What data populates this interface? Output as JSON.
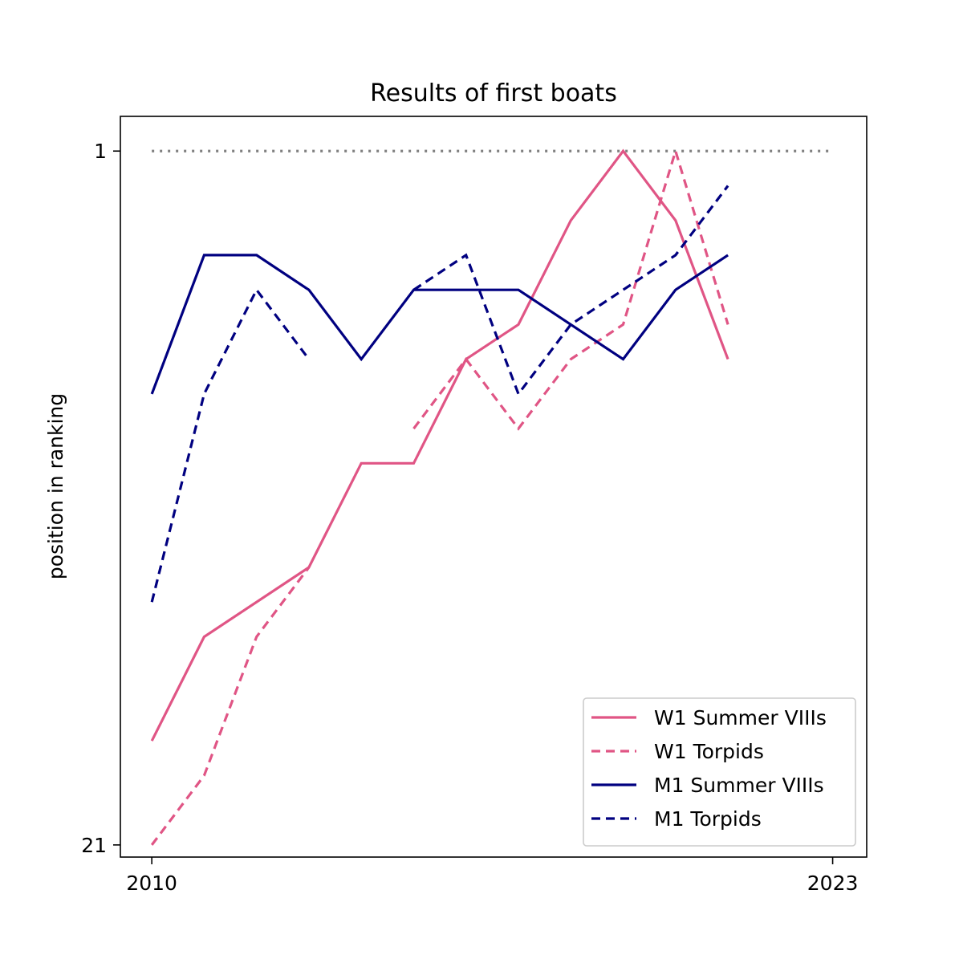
{
  "chart_data": {
    "type": "line",
    "title": "Results of first boats",
    "xlabel": "",
    "ylabel": "position in ranking",
    "x_ticks": [
      "2010",
      "2023"
    ],
    "y_ticks": [
      "1",
      "21"
    ],
    "xlim": [
      2009.4,
      2023.65
    ],
    "ylim": [
      21.35,
      0.0
    ],
    "grid": false,
    "legend_position": "lower-right",
    "x": [
      2010,
      2011,
      2012,
      2013,
      2014,
      2015,
      2016,
      2017,
      2018,
      2019,
      2020,
      2021,
      2022,
      2023
    ],
    "reference_line": {
      "y": 1,
      "x_from": 2010,
      "x_to": 2023,
      "color": "#808080",
      "style": "dotted"
    },
    "series": [
      {
        "name": "W1 Summer VIIIs",
        "color": "#e05585",
        "style": "solid",
        "points": [
          [
            2010,
            18
          ],
          [
            2011,
            15
          ],
          [
            2013,
            13
          ],
          [
            2014,
            10
          ],
          [
            2015,
            10
          ],
          [
            2016,
            7
          ],
          [
            2017,
            6
          ],
          [
            2018,
            3
          ],
          [
            2019,
            1
          ],
          [
            2020,
            3
          ],
          [
            2021,
            7
          ]
        ]
      },
      {
        "name": "W1 Torpids",
        "color": "#e05585",
        "style": "dashed",
        "segments": [
          [
            [
              2010,
              21
            ],
            [
              2011,
              19
            ],
            [
              2012,
              15
            ],
            [
              2013,
              13
            ]
          ],
          [
            [
              2015,
              9
            ],
            [
              2016,
              7
            ],
            [
              2017,
              9
            ],
            [
              2018,
              7
            ],
            [
              2019,
              6
            ],
            [
              2020,
              1
            ],
            [
              2021,
              6
            ]
          ]
        ]
      },
      {
        "name": "M1 Summer VIIIs",
        "color": "#000080",
        "style": "solid",
        "points": [
          [
            2010,
            8
          ],
          [
            2011,
            4
          ],
          [
            2012,
            4
          ],
          [
            2013,
            5
          ],
          [
            2014,
            7
          ],
          [
            2015,
            5
          ],
          [
            2016,
            5
          ],
          [
            2017,
            5
          ],
          [
            2018,
            6
          ],
          [
            2019,
            7
          ],
          [
            2020,
            5
          ],
          [
            2021,
            4
          ]
        ]
      },
      {
        "name": "M1 Torpids",
        "color": "#000080",
        "style": "dashed",
        "segments": [
          [
            [
              2010,
              14
            ],
            [
              2011,
              8
            ],
            [
              2012,
              5
            ],
            [
              2013,
              7
            ]
          ],
          [
            [
              2015,
              5
            ],
            [
              2016,
              4
            ],
            [
              2017,
              8
            ],
            [
              2018,
              6
            ],
            [
              2019,
              5
            ],
            [
              2020,
              4
            ],
            [
              2021,
              2
            ]
          ]
        ]
      }
    ]
  }
}
